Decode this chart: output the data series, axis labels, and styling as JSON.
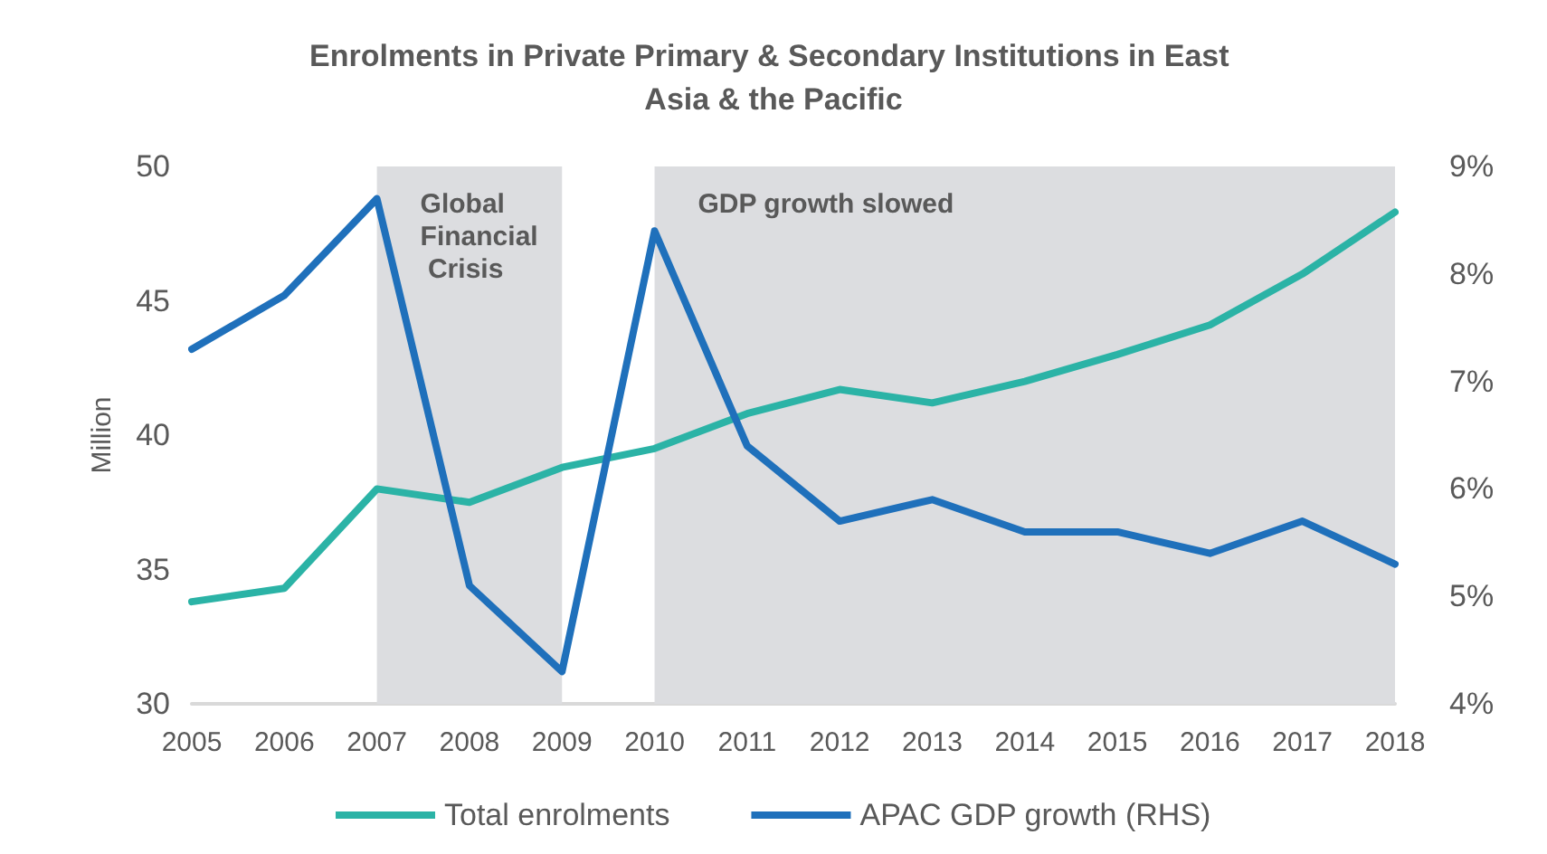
{
  "chart_data": {
    "type": "line",
    "title": "Enrolments in Private Primary & Secondary Institutions in East Asia & the Pacific",
    "categories": [
      "2005",
      "2006",
      "2007",
      "2008",
      "2009",
      "2010",
      "2011",
      "2012",
      "2013",
      "2014",
      "2015",
      "2016",
      "2017",
      "2018"
    ],
    "series": [
      {
        "name": "Total enrolments",
        "color": "#2bb3a6",
        "values": [
          33.8,
          34.3,
          38.0,
          37.5,
          38.8,
          39.5,
          40.8,
          41.7,
          41.2,
          42.0,
          43.0,
          44.1,
          46.0,
          48.3
        ]
      },
      {
        "name": "APAC GDP growth (RHS)",
        "color": "#1f70bb",
        "axis": "y2",
        "values": [
          7.3,
          7.8,
          8.7,
          5.1,
          4.3,
          8.4,
          6.4,
          5.7,
          5.9,
          5.6,
          5.6,
          5.4,
          5.7,
          5.3
        ]
      }
    ],
    "ylabel": "Million",
    "ylim": [
      30,
      50
    ],
    "yticks": [
      30,
      35,
      40,
      45,
      50
    ],
    "y2lim": [
      4,
      9
    ],
    "y2ticks": [
      {
        "value": 4,
        "label": "4%"
      },
      {
        "value": 5,
        "label": "5%"
      },
      {
        "value": 6,
        "label": "6%"
      },
      {
        "value": 7,
        "label": "7%"
      },
      {
        "value": 8,
        "label": "8%"
      },
      {
        "value": 9,
        "label": "9%"
      }
    ],
    "bands": [
      {
        "axis": "x",
        "from": "2007",
        "to": "2009",
        "label": "Global Financial Crisis",
        "color": "#dcdde0"
      },
      {
        "axis": "x",
        "from": "2010",
        "to": "2018",
        "label": "GDP growth slowed",
        "color": "#dcdde0"
      }
    ],
    "grid": false,
    "legend": "bottom",
    "marker": "none",
    "line_style": "solid"
  }
}
